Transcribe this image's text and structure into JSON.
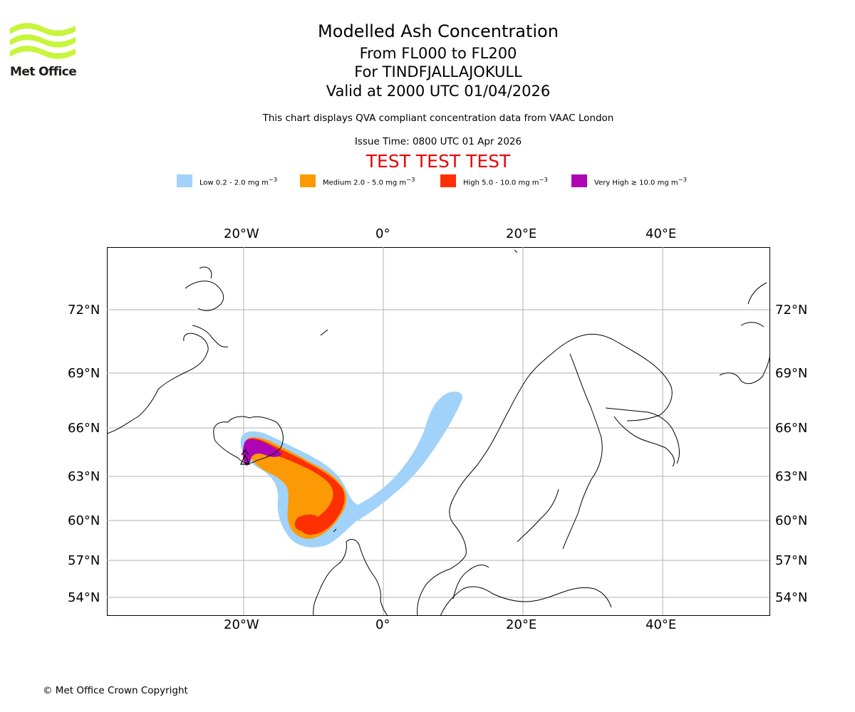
{
  "logo": {
    "text": "Met Office"
  },
  "title": {
    "line1": "Modelled Ash Concentration",
    "line2": "From FL000 to FL200",
    "line3": "For TINDFJALLAJOKULL",
    "line4": "Valid at 2000 UTC 01/04/2026"
  },
  "subtitle": {
    "description": "This chart displays QVA compliant concentration data from VAAC London",
    "issue_time": "Issue Time: 0800 UTC 01 Apr 2026",
    "test_banner": "TEST TEST TEST"
  },
  "legend": [
    {
      "label": "Low 0.2 - 2.0 mg m",
      "exp": "−3",
      "color": "#a0d2fa"
    },
    {
      "label": "Medium 2.0 - 5.0 mg m",
      "exp": "−3",
      "color": "#fc9a05"
    },
    {
      "label": "High 5.0 - 10.0 mg m",
      "exp": "−3",
      "color": "#fc3002"
    },
    {
      "label": "Very High ≥ 10.0 mg m",
      "exp": "−3",
      "color": "#ae04b4"
    }
  ],
  "map": {
    "lon_labels": [
      "20°W",
      "0°",
      "20°E",
      "40°E"
    ],
    "lat_labels": [
      "72°N",
      "69°N",
      "66°N",
      "63°N",
      "60°N",
      "57°N",
      "54°N"
    ]
  },
  "footer": {
    "copyright": "© Met Office Crown Copyright"
  }
}
